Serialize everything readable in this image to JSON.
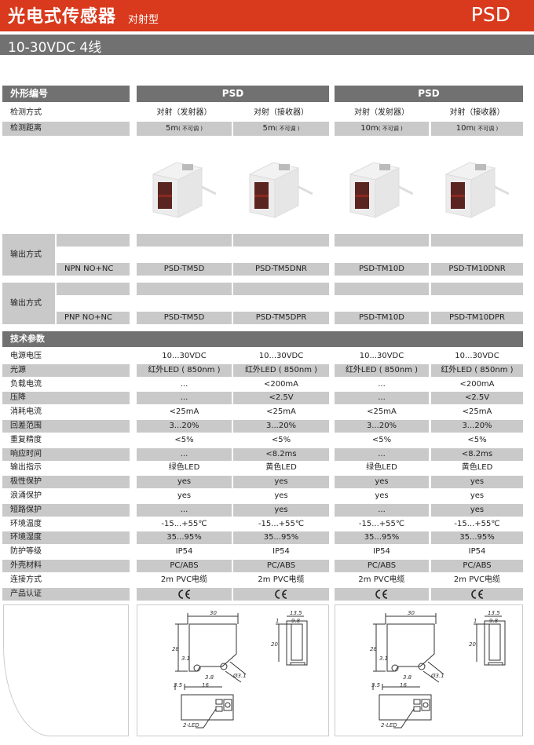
{
  "header": {
    "title": "光电式传感器",
    "subtitle": "对射型",
    "model": "PSD",
    "brand_color": "#d9391c"
  },
  "subheader": "10-30VDC 4线",
  "table": {
    "shape_label": "外形编号",
    "groups": [
      "PSD",
      "PSD"
    ],
    "detect_mode_label": "检测方式",
    "detect_modes": [
      "对射（发射器）",
      "对射（接收器）",
      "对射（发射器）",
      "对射（接收器）"
    ],
    "distance_label": "检测距离",
    "distances": [
      {
        "value": "5m",
        "note": "( 不可调 )"
      },
      {
        "value": "5m",
        "note": "( 不可调 )"
      },
      {
        "value": "10m",
        "note": "( 不可调 )"
      },
      {
        "value": "10m",
        "note": "( 不可调 )"
      }
    ],
    "outputs": [
      {
        "label": "输出方式",
        "type": "NPN NO+NC",
        "models": [
          "PSD-TM5D",
          "PSD-TM5DNR",
          "PSD-TM10D",
          "PSD-TM10DNR"
        ]
      },
      {
        "label": "输出方式",
        "type": "PNP NO+NC",
        "models": [
          "PSD-TM5D",
          "PSD-TM5DPR",
          "PSD-TM10D",
          "PSD-TM10DPR"
        ]
      }
    ],
    "tech_label": "技术参数",
    "specs": [
      {
        "label": "电源电压",
        "values": [
          "10...30VDC",
          "10...30VDC",
          "10...30VDC",
          "10...30VDC"
        ]
      },
      {
        "label": "光源",
        "values": [
          "红外LED ( 850nm )",
          "红外LED ( 850nm )",
          "红外LED ( 850nm )",
          "红外LED ( 850nm )"
        ]
      },
      {
        "label": "负载电流",
        "values": [
          "...",
          "<200mA",
          "...",
          "<200mA"
        ]
      },
      {
        "label": "压降",
        "values": [
          "...",
          "<2.5V",
          "...",
          "<2.5V"
        ]
      },
      {
        "label": "消耗电流",
        "values": [
          "<25mA",
          "<25mA",
          "<25mA",
          "<25mA"
        ]
      },
      {
        "label": "回差范围",
        "values": [
          "3...20%",
          "3...20%",
          "3...20%",
          "3...20%"
        ]
      },
      {
        "label": "重复精度",
        "values": [
          "<5%",
          "<5%",
          "<5%",
          "<5%"
        ]
      },
      {
        "label": "响应时间",
        "values": [
          "...",
          "<8.2ms",
          "...",
          "<8.2ms"
        ]
      },
      {
        "label": "输出指示",
        "values": [
          "绿色LED",
          "黄色LED",
          "绿色LED",
          "黄色LED"
        ]
      },
      {
        "label": "极性保护",
        "values": [
          "yes",
          "yes",
          "yes",
          "yes"
        ]
      },
      {
        "label": "浪涌保护",
        "values": [
          "yes",
          "yes",
          "yes",
          "yes"
        ]
      },
      {
        "label": "短路保护",
        "values": [
          "...",
          "yes",
          "...",
          "yes"
        ]
      },
      {
        "label": "环境温度",
        "values": [
          "-15...+55℃",
          "-15...+55℃",
          "-15...+55℃",
          "-15...+55℃"
        ]
      },
      {
        "label": "环境湿度",
        "values": [
          "35...95%",
          "35...95%",
          "35...95%",
          "35...95%"
        ]
      },
      {
        "label": "防护等级",
        "values": [
          "IP54",
          "IP54",
          "IP54",
          "IP54"
        ]
      },
      {
        "label": "外壳材料",
        "values": [
          "PC/ABS",
          "PC/ABS",
          "PC/ABS",
          "PC/ABS"
        ]
      },
      {
        "label": "连接方式",
        "values": [
          "2m PVC电缆",
          "2m PVC电缆",
          "2m PVC电缆",
          "2m PVC电缆"
        ]
      },
      {
        "label": "产品认证",
        "values": [
          "CE",
          "CE",
          "CE",
          "CE"
        ]
      }
    ]
  },
  "drawing": {
    "dims": {
      "width": "30",
      "depth": "13.5",
      "inner": "9.8",
      "top": "1",
      "height": "28",
      "hole": "3.1",
      "side_h": "20",
      "d1": "3.8",
      "cable": "Ø3.1",
      "d2": "3.5",
      "d3": "16"
    },
    "led_label": "2-LED"
  }
}
